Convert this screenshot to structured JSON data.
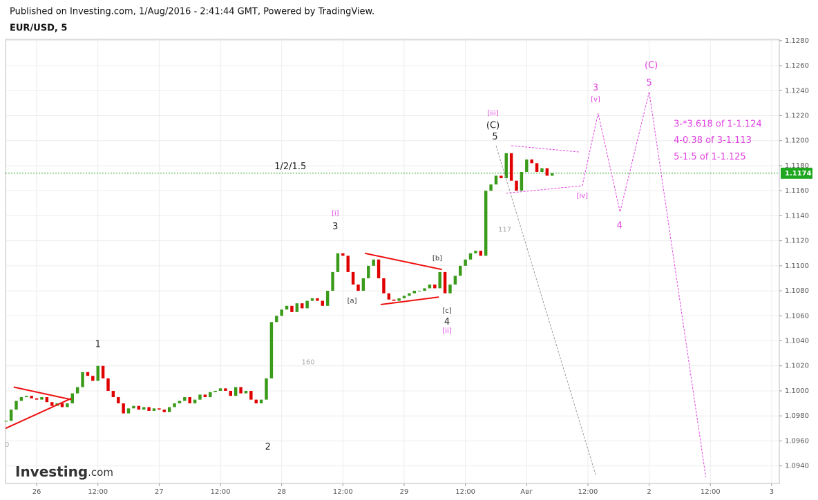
{
  "header": "Published on Investing.com, 1/Aug/2016 - 2:41:44 GMT, Powered by TradingView.",
  "logo": {
    "name": "Investing",
    "suffix": ".com"
  },
  "chart_data": {
    "type": "candlestick",
    "title": "EUR/USD, 5",
    "x": [
      -6,
      -5,
      -4,
      -3,
      -2,
      -1,
      0,
      1,
      2,
      3,
      4,
      5,
      6,
      7,
      8,
      9,
      10,
      11,
      12,
      13,
      14,
      15,
      16,
      17,
      18,
      19,
      20,
      21,
      22,
      23,
      24,
      25,
      26,
      27,
      28,
      29,
      30,
      31,
      32,
      33,
      34,
      35,
      36,
      37,
      38,
      39,
      40,
      41,
      42,
      43,
      44,
      45,
      46,
      47,
      48,
      49,
      50,
      51,
      52,
      53,
      54,
      55,
      56,
      57,
      58,
      59,
      60,
      61,
      62,
      63,
      64,
      65,
      66,
      67,
      68,
      69,
      70,
      71,
      72,
      73,
      74,
      75,
      76,
      77,
      78,
      79,
      80,
      81,
      82,
      83,
      84,
      85,
      86,
      87,
      88,
      89,
      90,
      91,
      92,
      93,
      94,
      95,
      96,
      97,
      98,
      99,
      100,
      101
    ],
    "values": [
      1.0976,
      1.0985,
      1.0992,
      1.0995,
      1.0996,
      1.0994,
      1.0993,
      1.0995,
      1.0991,
      1.0988,
      1.099,
      1.0987,
      1.099,
      1.0998,
      1.1003,
      1.1015,
      1.1012,
      1.1008,
      1.102,
      1.101,
      1.1,
      1.0995,
      1.099,
      1.0982,
      1.0986,
      1.0988,
      1.0985,
      1.0987,
      1.0984,
      1.0986,
      1.0985,
      1.0983,
      1.0987,
      1.099,
      1.0992,
      1.0995,
      1.099,
      1.0993,
      1.0997,
      1.0995,
      1.0999,
      1.1,
      1.1002,
      1.1,
      1.0996,
      1.1003,
      1.0998,
      1.1,
      1.0993,
      1.099,
      1.0993,
      1.101,
      1.1055,
      1.106,
      1.1065,
      1.1068,
      1.1063,
      1.107,
      1.1066,
      1.1072,
      1.1074,
      1.1072,
      1.1068,
      1.108,
      1.1095,
      1.111,
      1.1108,
      1.1095,
      1.1085,
      1.108,
      1.109,
      1.11,
      1.1105,
      1.109,
      1.1078,
      1.1073,
      1.1072,
      1.1074,
      1.1076,
      1.1078,
      1.108,
      1.108,
      1.1082,
      1.1085,
      1.1082,
      1.1095,
      1.1078,
      1.1085,
      1.1092,
      1.11,
      1.1105,
      1.111,
      1.1112,
      1.1108,
      1.116,
      1.1165,
      1.1172,
      1.117,
      1.119,
      1.1168,
      1.116,
      1.1175,
      1.1185,
      1.1182,
      1.1175,
      1.1178,
      1.1172,
      1.1174
    ],
    "up_color": "#3a9a1a",
    "down_color": "#e00000",
    "last_price": {
      "value": 1.1174,
      "label": "1.1174",
      "color": "#1fa81f"
    },
    "xlim": [
      -6.1,
      145.5
    ],
    "ylim": [
      1.0926,
      1.1281
    ],
    "xticks": [
      {
        "value": 0,
        "label": "26"
      },
      {
        "value": 12,
        "label": "12:00"
      },
      {
        "value": 24,
        "label": "27"
      },
      {
        "value": 36,
        "label": "12:00"
      },
      {
        "value": 48,
        "label": "28"
      },
      {
        "value": 60,
        "label": "12:00"
      },
      {
        "value": 72,
        "label": "29"
      },
      {
        "value": 84,
        "label": "12:00"
      },
      {
        "value": 96,
        "label": "Авг"
      },
      {
        "value": 108,
        "label": "12:00"
      },
      {
        "value": 120,
        "label": "2"
      },
      {
        "value": 132,
        "label": "12:00"
      },
      {
        "value": 144,
        "label": "3"
      }
    ],
    "yticks": [
      {
        "value": 1.094,
        "label": "1.0940"
      },
      {
        "value": 1.096,
        "label": "1.0960"
      },
      {
        "value": 1.098,
        "label": "1.0980"
      },
      {
        "value": 1.1,
        "label": "1.1000"
      },
      {
        "value": 1.102,
        "label": "1.1020"
      },
      {
        "value": 1.104,
        "label": "1.1040"
      },
      {
        "value": 1.106,
        "label": "1.1060"
      },
      {
        "value": 1.108,
        "label": "1.1080"
      },
      {
        "value": 1.11,
        "label": "1.1100"
      },
      {
        "value": 1.112,
        "label": "1.1120"
      },
      {
        "value": 1.114,
        "label": "1.1140"
      },
      {
        "value": 1.116,
        "label": "1.1160"
      },
      {
        "value": 1.118,
        "label": "1.1180"
      },
      {
        "value": 1.12,
        "label": "1.1200"
      },
      {
        "value": 1.122,
        "label": "1.1220"
      },
      {
        "value": 1.124,
        "label": "1.1240"
      },
      {
        "value": 1.126,
        "label": "1.1260"
      },
      {
        "value": 1.128,
        "label": "1.1280"
      }
    ],
    "grid": true,
    "annotations": [
      {
        "text": "1",
        "x": 12,
        "y": 1.1037,
        "color": "#222"
      },
      {
        "text": "2",
        "x": 45.3,
        "y": 1.0955,
        "color": "#222"
      },
      {
        "text": "3",
        "x": 58.5,
        "y": 1.1131,
        "color": "#222"
      },
      {
        "text": "[i]",
        "x": 58.5,
        "y": 1.1142,
        "color": "#e040e0"
      },
      {
        "text": "4",
        "x": 80.4,
        "y": 1.1055,
        "color": "#222"
      },
      {
        "text": "[c]",
        "x": 80.4,
        "y": 1.1064,
        "color": "#333"
      },
      {
        "text": "[ii]",
        "x": 80.4,
        "y": 1.1048,
        "color": "#e040e0"
      },
      {
        "text": "[a]",
        "x": 61.8,
        "y": 1.1072,
        "color": "#333"
      },
      {
        "text": "[b]",
        "x": 78.5,
        "y": 1.1106,
        "color": "#333"
      },
      {
        "text": "(C)",
        "x": 89.4,
        "y": 1.1212,
        "color": "#222"
      },
      {
        "text": "5",
        "x": 89.8,
        "y": 1.1203,
        "color": "#222"
      },
      {
        "text": "[iii]",
        "x": 89.4,
        "y": 1.1222,
        "color": "#e040e0"
      },
      {
        "text": "1/2/1.5",
        "x": 49.7,
        "y": 1.1179,
        "color": "#222"
      },
      {
        "text": "160",
        "x": 53.2,
        "y": 1.1023,
        "color": "#aaa"
      },
      {
        "text": "117",
        "x": 91.7,
        "y": 1.1129,
        "color": "#aaa"
      },
      {
        "text": "0",
        "x": -5.8,
        "y": 1.0957,
        "color": "#aaa"
      },
      {
        "text": "3",
        "x": 109.5,
        "y": 1.1242,
        "color": "#e040e0"
      },
      {
        "text": "[v]",
        "x": 109.5,
        "y": 1.1233,
        "color": "#e040e0"
      },
      {
        "text": "(C)",
        "x": 120.4,
        "y": 1.126,
        "color": "#e040e0"
      },
      {
        "text": "5",
        "x": 120,
        "y": 1.1246,
        "color": "#e040e0"
      },
      {
        "text": "[iv]",
        "x": 106.9,
        "y": 1.1156,
        "color": "#e040e0"
      },
      {
        "text": "4",
        "x": 114.2,
        "y": 1.1132,
        "color": "#e040e0"
      },
      {
        "text": "3-*3.618 of 1-1.124",
        "x": 124.8,
        "y": 1.1213,
        "color": "#e040e0",
        "anchor": "start"
      },
      {
        "text": "4-0.38 of 3-1.113",
        "x": 124.8,
        "y": 1.12,
        "color": "#e040e0",
        "anchor": "start"
      },
      {
        "text": "5-1.5 of 1-1.125",
        "x": 124.8,
        "y": 1.1187,
        "color": "#e040e0",
        "anchor": "start"
      }
    ],
    "lines": [
      {
        "x": [
          -6.1,
          6.8
        ],
        "y": [
          1.097,
          1.0994
        ],
        "color": "#ee1111",
        "dash": "none"
      },
      {
        "x": [
          -4.5,
          6.8
        ],
        "y": [
          1.1003,
          1.0993
        ],
        "color": "#ee1111",
        "dash": "none"
      },
      {
        "x": [
          64.3,
          79.4
        ],
        "y": [
          1.111,
          1.1097
        ],
        "color": "#ee1111",
        "dash": "none"
      },
      {
        "x": [
          67.4,
          78.8
        ],
        "y": [
          1.1069,
          1.1075
        ],
        "color": "#ee1111",
        "dash": "none"
      },
      {
        "x": [
          93,
          106.2
        ],
        "y": [
          1.1196,
          1.1191
        ],
        "color": "#e040e0",
        "dash": "3,2"
      },
      {
        "x": [
          92,
          106.9
        ],
        "y": [
          1.1158,
          1.1164
        ],
        "color": "#e040e0",
        "dash": "3,2"
      },
      {
        "x": [
          106.9,
          110,
          114.3,
          120,
          131.1
        ],
        "y": [
          1.1164,
          1.1222,
          1.1143,
          1.1239,
          1.0931
        ],
        "color": "#e040e0",
        "dash": "3,2"
      },
      {
        "x": [
          90,
          109.5
        ],
        "y": [
          1.1196,
          1.0933
        ],
        "color": "#999999",
        "dash": "3,2"
      }
    ]
  }
}
